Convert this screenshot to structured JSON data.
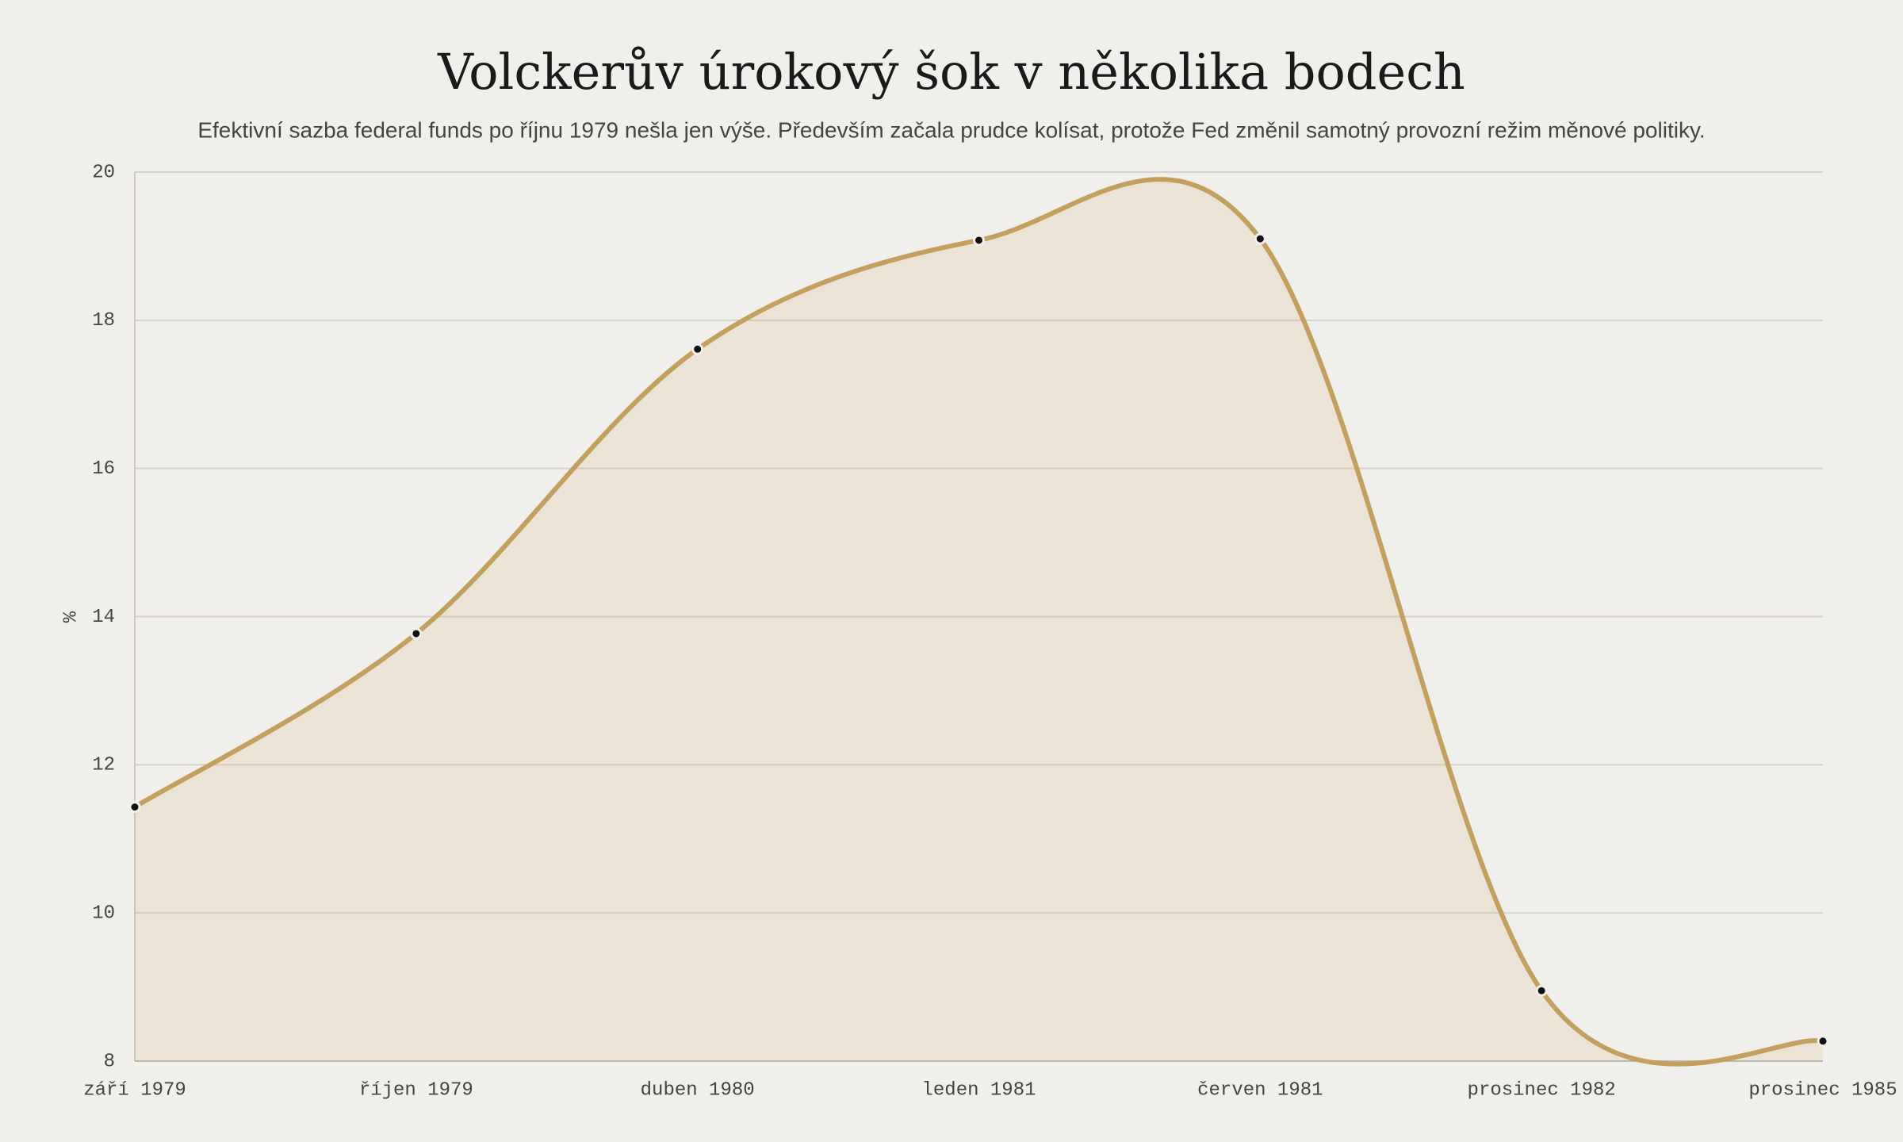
{
  "chart_data": {
    "type": "area",
    "title": "Volckerův úrokový šok v několika bodech",
    "subtitle": "Efektivní sazba federal funds po říjnu 1979 nešla jen výše. Především začala prudce kolísat, protože Fed změnil samotný provozní režim měnové politiky.",
    "y_label": "%",
    "categories": [
      "září 1979",
      "říjen 1979",
      "duben 1980",
      "leden 1981",
      "červen 1981",
      "prosinec 1982",
      "prosinec 1985"
    ],
    "values": [
      11.43,
      13.77,
      17.61,
      19.08,
      19.1,
      8.95,
      8.27
    ],
    "color": "#c4a060",
    "ylim": [
      8,
      20
    ],
    "yticks": [
      8,
      10,
      12,
      14,
      16,
      18,
      20
    ],
    "grid": true
  }
}
